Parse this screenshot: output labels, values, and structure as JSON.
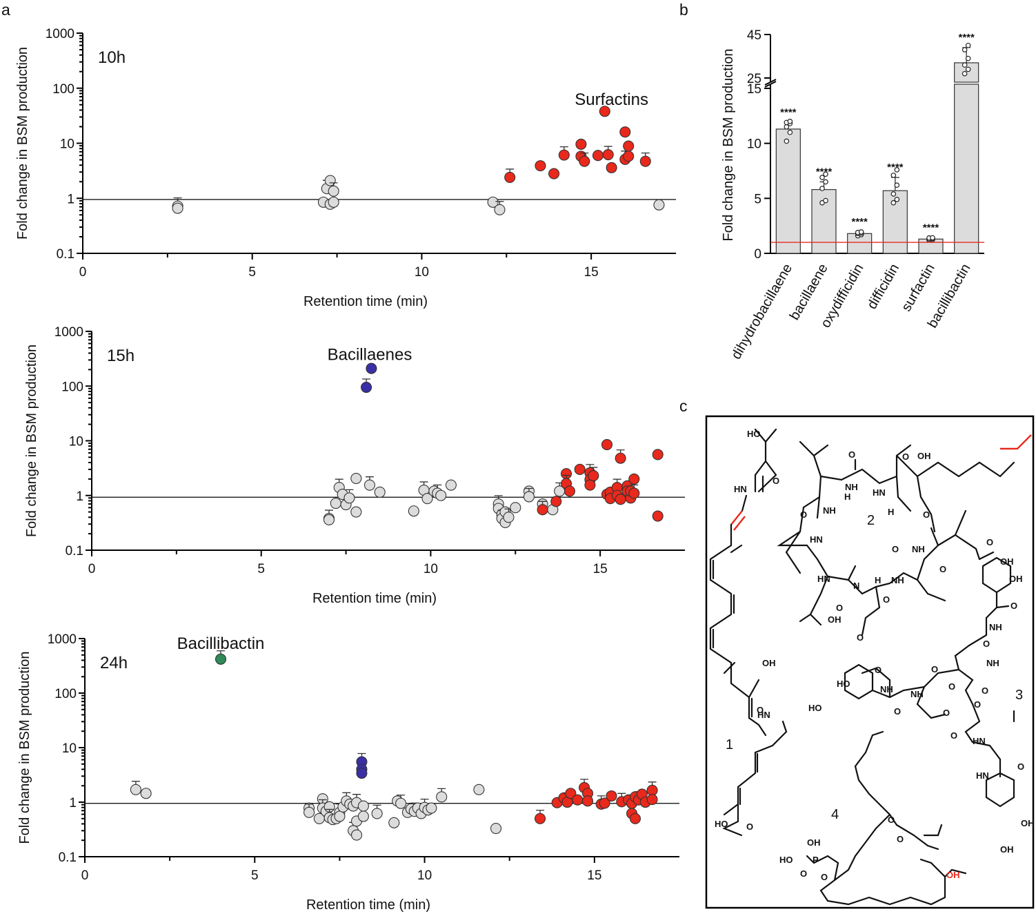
{
  "panel_labels": {
    "a": "a",
    "b": "b",
    "c": "c"
  },
  "colors": {
    "grey": "#dcdcdc",
    "red": "#e8291c",
    "blue": "#3a2fa6",
    "green": "#2e8b57",
    "ref_line_b": "#e8291c"
  },
  "chart_data": [
    {
      "id": "a10",
      "type": "scatter",
      "title": "10h",
      "xlabel": "Retention time (min)",
      "ylabel": "Fold change in BSM production",
      "xlim": [
        0,
        17.5
      ],
      "ylim": [
        0.1,
        1000
      ],
      "yscale": "log",
      "xticks": [
        "0",
        "5",
        "10",
        "15"
      ],
      "yticks": [
        "0.1",
        "1",
        "10",
        "100",
        "1000"
      ],
      "reference_line": 0.95,
      "annotations": [
        {
          "text": "Surfactins",
          "x": 15.6,
          "y": 50
        }
      ],
      "series": [
        {
          "name": "unchanged",
          "color": "grey",
          "x": [
            2.8,
            2.8,
            7.1,
            7.2,
            7.3,
            7.3,
            7.4,
            7.4,
            12.1,
            12.3,
            17.0
          ],
          "y": [
            0.72,
            0.66,
            0.85,
            1.5,
            2.1,
            0.78,
            1.35,
            0.85,
            0.85,
            0.62,
            0.76
          ]
        },
        {
          "name": "surfactins",
          "color": "red",
          "x": [
            12.6,
            13.5,
            13.9,
            14.2,
            14.7,
            14.7,
            14.8,
            15.2,
            15.4,
            15.5,
            15.6,
            16.0,
            16.0,
            16.1,
            16.1,
            16.6
          ],
          "y": [
            2.4,
            3.9,
            2.8,
            6.1,
            9.6,
            5.8,
            4.7,
            6.0,
            38,
            6.2,
            3.6,
            16,
            5.1,
            8.9,
            5.8,
            4.7
          ]
        }
      ]
    },
    {
      "id": "a15",
      "type": "scatter",
      "title": "15h",
      "xlabel": "Retention time (min)",
      "ylabel": "Fold change in BSM production",
      "xlim": [
        0,
        17.5
      ],
      "ylim": [
        0.1,
        1000
      ],
      "yscale": "log",
      "xticks": [
        "0",
        "5",
        "10",
        "15"
      ],
      "yticks": [
        "0.1",
        "1",
        "10",
        "100",
        "1000"
      ],
      "reference_line": 0.93,
      "annotations": [
        {
          "text": "Bacillaenes",
          "x": 8.2,
          "y": 300
        }
      ],
      "series": [
        {
          "name": "unchanged",
          "color": "grey",
          "x": [
            7.0,
            7.0,
            7.2,
            7.3,
            7.4,
            7.5,
            7.6,
            7.8,
            7.8,
            8.2,
            8.5,
            9.5,
            9.8,
            9.9,
            10.1,
            10.2,
            10.3,
            10.6,
            12.0,
            12.0,
            12.1,
            12.1,
            12.2,
            12.2,
            12.3,
            12.5,
            12.9,
            12.9,
            13.3,
            13.6,
            13.8
          ],
          "y": [
            0.38,
            0.36,
            0.72,
            1.4,
            1.05,
            0.68,
            0.9,
            2.05,
            0.5,
            1.55,
            1.15,
            0.52,
            1.25,
            0.88,
            1.2,
            1.1,
            1.0,
            1.55,
            0.7,
            0.58,
            0.45,
            0.38,
            0.5,
            0.32,
            0.4,
            0.6,
            1.2,
            0.95,
            0.7,
            0.55,
            1.2
          ]
        },
        {
          "name": "surfactins",
          "color": "red",
          "x": [
            13.3,
            13.7,
            14.0,
            14.0,
            14.1,
            14.4,
            14.7,
            14.7,
            14.7,
            14.8,
            15.2,
            15.2,
            15.3,
            15.3,
            15.3,
            15.5,
            15.5,
            15.6,
            15.6,
            15.8,
            15.8,
            15.9,
            15.9,
            16.0,
            16.0,
            16.7,
            16.7
          ],
          "y": [
            0.55,
            0.78,
            2.5,
            1.65,
            1.2,
            3.0,
            2.6,
            1.95,
            1.55,
            2.3,
            8.5,
            1.05,
            0.95,
            1.15,
            0.88,
            1.4,
            1.0,
            0.85,
            4.8,
            1.5,
            1.2,
            0.9,
            1.2,
            2.0,
            1.1,
            5.6,
            0.42
          ]
        },
        {
          "name": "bacillaenes",
          "color": "blue",
          "x": [
            8.1,
            8.25
          ],
          "y": [
            95,
            210
          ]
        }
      ]
    },
    {
      "id": "a24",
      "type": "scatter",
      "title": "24h",
      "xlabel": "Retention time (min)",
      "ylabel": "Fold change in BSM production",
      "xlim": [
        0,
        17.5
      ],
      "ylim": [
        0.1,
        1000
      ],
      "yscale": "log",
      "xticks": [
        "0",
        "5",
        "10",
        "15"
      ],
      "yticks": [
        "0.1",
        "1",
        "10",
        "100",
        "1000"
      ],
      "reference_line": 0.95,
      "annotations": [
        {
          "text": "Bacillibactin",
          "x": 4.0,
          "y": 650
        }
      ],
      "series": [
        {
          "name": "unchanged",
          "color": "grey",
          "x": [
            1.5,
            1.8,
            6.6,
            6.6,
            6.9,
            7.0,
            7.0,
            7.1,
            7.2,
            7.2,
            7.3,
            7.4,
            7.5,
            7.5,
            7.6,
            7.7,
            7.8,
            7.9,
            7.9,
            8.0,
            8.0,
            8.0,
            8.2,
            8.2,
            8.6,
            9.1,
            9.2,
            9.3,
            9.5,
            9.6,
            9.7,
            9.8,
            9.9,
            10.0,
            10.1,
            10.2,
            10.5,
            11.6,
            12.1
          ],
          "y": [
            1.7,
            1.45,
            0.78,
            0.65,
            0.5,
            1.15,
            0.78,
            0.68,
            0.82,
            0.52,
            0.48,
            0.5,
            0.65,
            0.55,
            0.82,
            1.05,
            0.92,
            0.85,
            0.3,
            0.45,
            0.25,
            0.98,
            0.85,
            0.55,
            0.62,
            0.42,
            1.05,
            0.95,
            0.65,
            0.75,
            0.68,
            0.78,
            0.62,
            0.8,
            0.72,
            0.78,
            1.25,
            1.7,
            0.33
          ]
        },
        {
          "name": "surfactins",
          "color": "red",
          "x": [
            13.4,
            13.9,
            14.1,
            14.2,
            14.3,
            14.5,
            14.7,
            14.8,
            14.8,
            15.2,
            15.3,
            15.5,
            15.8,
            16.0,
            16.1,
            16.1,
            16.2,
            16.2,
            16.3,
            16.4,
            16.5,
            16.7,
            16.7
          ],
          "y": [
            0.5,
            0.98,
            1.2,
            1.0,
            1.45,
            1.1,
            1.85,
            1.45,
            1.05,
            0.92,
            0.96,
            1.3,
            1.02,
            1.1,
            0.62,
            0.95,
            1.25,
            0.5,
            1.1,
            1.4,
            1.0,
            1.65,
            1.12
          ]
        },
        {
          "name": "bacillaenes",
          "color": "blue",
          "x": [
            8.15,
            8.15,
            8.15
          ],
          "y": [
            5.5,
            4.0,
            3.4
          ]
        },
        {
          "name": "bacillibactin",
          "color": "green",
          "x": [
            4.0
          ],
          "y": [
            420
          ]
        }
      ]
    },
    {
      "id": "b",
      "type": "bar",
      "ylabel": "Fold change in BSM production",
      "categories": [
        "dihydrobacillaene",
        "bacillaene",
        "oxydifficidin",
        "difficidin",
        "surfactin",
        "bacillibactin"
      ],
      "values": [
        11.3,
        5.8,
        1.8,
        5.7,
        1.3,
        32
      ],
      "significance": [
        "****",
        "****",
        "****",
        "****",
        "****",
        "****"
      ],
      "error_up": [
        0.6,
        0.7,
        0.15,
        1.2,
        0.1,
        7
      ],
      "points": [
        [
          10.2,
          11.0,
          11.5,
          11.8,
          11.9,
          12.0
        ],
        [
          4.6,
          4.8,
          5.9,
          6.5,
          6.9,
          7.2
        ],
        [
          1.6,
          1.7,
          1.8,
          1.85,
          1.9,
          1.95
        ],
        [
          4.6,
          4.9,
          5.4,
          6.2,
          7.1,
          7.6
        ],
        [
          1.2,
          1.25,
          1.3,
          1.35,
          1.4,
          1.42
        ],
        [
          27,
          29,
          31,
          34,
          38,
          40
        ]
      ],
      "yticks": [
        "0",
        "5",
        "10",
        "15",
        "25",
        "45"
      ],
      "ylim": [
        0,
        45
      ],
      "y_break": [
        15,
        25
      ],
      "reference_line": 1
    }
  ],
  "structures": {
    "labels": [
      "1",
      "2",
      "3",
      "4"
    ],
    "atoms": [
      "HO",
      "O",
      "HN",
      "OH",
      "O",
      "O",
      "OH",
      "NH",
      "H",
      "N",
      "HN",
      "H",
      "O",
      "O",
      "NH",
      "HN",
      "O",
      "O",
      "OH",
      "OH",
      "O",
      "HN",
      "H",
      "NH",
      "HN",
      "O",
      "O",
      "NH",
      "HN",
      "O",
      "OH",
      "O",
      "HO",
      "O",
      "HO",
      "NH",
      "O",
      "O",
      "NH",
      "HO",
      "O",
      "O",
      "O",
      "O",
      "HN",
      "O",
      "O",
      "O",
      "NH",
      "O",
      "HO",
      "O",
      "HN",
      "O",
      "O",
      "OH",
      "OH",
      "P",
      "O",
      "OH",
      "O",
      "O",
      "OH"
    ]
  }
}
